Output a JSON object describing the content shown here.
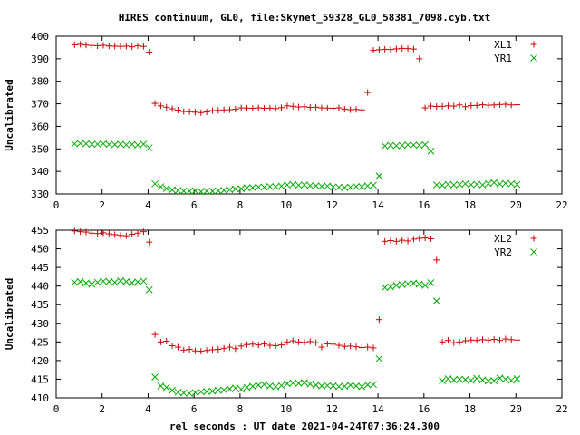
{
  "page": {
    "title": "HIRES continuum, GL0, file:Skynet_59328_GL0_58381_7098.cyb.txt",
    "xlabel": "rel seconds : UT date 2021-04-24T07:36:24.300"
  },
  "chart_data": [
    {
      "type": "scatter",
      "ylabel": "Uncalibrated",
      "xlim": [
        0,
        22
      ],
      "ylim": [
        330,
        400
      ],
      "xticks": [
        "0",
        "2",
        "4",
        "6",
        "8",
        "10",
        "12",
        "14",
        "16",
        "18",
        "20",
        "22"
      ],
      "yticks": [
        "330",
        "340",
        "350",
        "360",
        "370",
        "380",
        "390",
        "400"
      ],
      "legend_position": "top-right",
      "series": [
        {
          "name": "XL1",
          "marker": "+",
          "color": "#cc0000",
          "x": [
            0.8,
            1.05,
            1.3,
            1.55,
            1.8,
            2.05,
            2.3,
            2.55,
            2.8,
            3.05,
            3.3,
            3.55,
            3.8,
            4.05,
            4.3,
            4.55,
            4.8,
            5.05,
            5.3,
            5.55,
            5.8,
            6.05,
            6.3,
            6.55,
            6.8,
            7.05,
            7.3,
            7.55,
            7.8,
            8.05,
            8.3,
            8.55,
            8.8,
            9.05,
            9.3,
            9.55,
            9.8,
            10.05,
            10.3,
            10.55,
            10.8,
            11.05,
            11.3,
            11.55,
            11.8,
            12.05,
            12.3,
            12.55,
            12.8,
            13.05,
            13.3,
            13.55,
            13.8,
            14.05,
            14.3,
            14.55,
            14.8,
            15.05,
            15.3,
            15.55,
            15.8,
            16.05,
            16.3,
            16.55,
            16.8,
            17.05,
            17.3,
            17.55,
            17.8,
            18.05,
            18.3,
            18.55,
            18.8,
            19.05,
            19.3,
            19.55,
            19.8,
            20.05
          ],
          "y": [
            396.2,
            396.4,
            396.1,
            395.9,
            395.8,
            396.0,
            395.7,
            395.6,
            395.5,
            395.6,
            395.3,
            395.8,
            395.5,
            393.0,
            370.2,
            369.1,
            368.5,
            367.8,
            367.2,
            366.6,
            366.5,
            366.3,
            366.1,
            366.4,
            367.0,
            367.1,
            367.3,
            367.4,
            367.6,
            368.2,
            368.1,
            368.0,
            368.2,
            368.0,
            368.1,
            367.9,
            368.3,
            369.1,
            368.9,
            368.6,
            368.7,
            368.4,
            368.5,
            368.2,
            368.1,
            368.0,
            368.2,
            367.6,
            367.4,
            367.5,
            367.3,
            375.0,
            393.7,
            394.0,
            394.2,
            394.1,
            394.4,
            394.6,
            394.5,
            394.3,
            390.0,
            368.2,
            369.0,
            368.8,
            368.9,
            369.1,
            369.0,
            369.5,
            368.7,
            369.2,
            369.3,
            369.6,
            369.4,
            369.5,
            369.7,
            369.8,
            369.5,
            369.6
          ],
          "x_offset_note": ""
        },
        {
          "name": "YR1",
          "marker": "x",
          "color": "#00aa00",
          "x": [
            0.8,
            1.05,
            1.3,
            1.55,
            1.8,
            2.05,
            2.3,
            2.55,
            2.8,
            3.05,
            3.3,
            3.55,
            3.8,
            4.05,
            4.3,
            4.55,
            4.8,
            5.05,
            5.3,
            5.55,
            5.8,
            6.05,
            6.3,
            6.55,
            6.8,
            7.05,
            7.3,
            7.55,
            7.8,
            8.05,
            8.3,
            8.55,
            8.8,
            9.05,
            9.3,
            9.55,
            9.8,
            10.05,
            10.3,
            10.55,
            10.8,
            11.05,
            11.3,
            11.55,
            11.8,
            12.05,
            12.3,
            12.55,
            12.8,
            13.05,
            13.3,
            13.55,
            13.8,
            14.05,
            14.3,
            14.55,
            14.8,
            15.05,
            15.3,
            15.55,
            15.8,
            16.05,
            16.3,
            16.55,
            16.8,
            17.05,
            17.3,
            17.55,
            17.8,
            18.05,
            18.3,
            18.55,
            18.8,
            19.05,
            19.3,
            19.55,
            19.8,
            20.05
          ],
          "y": [
            352.2,
            352.4,
            352.3,
            352.0,
            352.1,
            352.3,
            352.0,
            351.9,
            352.1,
            351.8,
            352.0,
            351.7,
            352.1,
            350.5,
            334.5,
            333.2,
            332.4,
            331.8,
            331.5,
            331.3,
            331.2,
            331.4,
            331.0,
            331.3,
            331.2,
            331.4,
            331.6,
            331.9,
            332.2,
            332.3,
            332.7,
            332.8,
            333.1,
            333.0,
            333.3,
            333.2,
            333.5,
            334.0,
            334.2,
            333.9,
            334.0,
            333.7,
            333.6,
            333.4,
            333.5,
            333.1,
            333.0,
            332.8,
            333.0,
            333.3,
            333.2,
            333.6,
            333.9,
            338.0,
            351.3,
            351.6,
            351.4,
            351.5,
            351.8,
            351.7,
            351.6,
            351.9,
            349.0,
            334.0,
            333.8,
            334.3,
            334.0,
            334.2,
            334.5,
            334.1,
            334.3,
            334.0,
            334.6,
            335.0,
            334.4,
            334.7,
            334.5,
            334.2
          ]
        }
      ]
    },
    {
      "type": "scatter",
      "ylabel": "Uncalibrated",
      "xlim": [
        0,
        22
      ],
      "ylim": [
        410,
        455
      ],
      "xticks": [
        "0",
        "2",
        "4",
        "6",
        "8",
        "10",
        "12",
        "14",
        "16",
        "18",
        "20",
        "22"
      ],
      "yticks": [
        "410",
        "415",
        "420",
        "425",
        "430",
        "435",
        "440",
        "445",
        "450",
        "455"
      ],
      "legend_position": "top-right",
      "series": [
        {
          "name": "XL2",
          "marker": "+",
          "color": "#cc0000",
          "x": [
            0.8,
            1.05,
            1.3,
            1.55,
            1.8,
            2.05,
            2.3,
            2.55,
            2.8,
            3.05,
            3.3,
            3.55,
            3.8,
            4.05,
            4.3,
            4.55,
            4.8,
            5.05,
            5.3,
            5.55,
            5.8,
            6.05,
            6.3,
            6.55,
            6.8,
            7.05,
            7.3,
            7.55,
            7.8,
            8.05,
            8.3,
            8.55,
            8.8,
            9.05,
            9.3,
            9.55,
            9.8,
            10.05,
            10.3,
            10.55,
            10.8,
            11.05,
            11.3,
            11.55,
            11.8,
            12.05,
            12.3,
            12.55,
            12.8,
            13.05,
            13.3,
            13.55,
            13.8,
            14.05,
            14.3,
            14.55,
            14.8,
            15.05,
            15.3,
            15.55,
            15.8,
            16.05,
            16.3,
            16.55,
            16.8,
            17.05,
            17.3,
            17.55,
            17.8,
            18.05,
            18.3,
            18.55,
            18.8,
            19.05,
            19.3,
            19.55,
            19.8,
            20.05
          ],
          "y": [
            454.8,
            454.6,
            454.5,
            454.2,
            454.1,
            454.3,
            454.0,
            453.8,
            453.6,
            453.5,
            453.9,
            454.2,
            454.6,
            451.8,
            427.0,
            425.0,
            425.2,
            424.0,
            423.6,
            422.8,
            423.0,
            422.6,
            422.5,
            422.7,
            422.9,
            423.0,
            423.3,
            423.6,
            423.2,
            423.9,
            424.3,
            424.4,
            424.2,
            424.5,
            424.1,
            424.0,
            424.2,
            425.0,
            425.3,
            425.0,
            424.9,
            425.1,
            424.8,
            423.6,
            424.5,
            424.4,
            424.1,
            423.8,
            423.9,
            423.7,
            423.5,
            423.6,
            423.4,
            431.0,
            452.0,
            452.2,
            452.0,
            452.3,
            452.1,
            452.6,
            452.8,
            452.9,
            452.7,
            447.0,
            425.0,
            425.4,
            424.8,
            425.0,
            425.3,
            425.5,
            425.4,
            425.6,
            425.5,
            425.7,
            425.4,
            425.8,
            425.6,
            425.5
          ]
        },
        {
          "name": "YR2",
          "marker": "x",
          "color": "#00aa00",
          "x": [
            0.8,
            1.05,
            1.3,
            1.55,
            1.8,
            2.05,
            2.3,
            2.55,
            2.8,
            3.05,
            3.3,
            3.55,
            3.8,
            4.05,
            4.3,
            4.55,
            4.8,
            5.05,
            5.3,
            5.55,
            5.8,
            6.05,
            6.3,
            6.55,
            6.8,
            7.05,
            7.3,
            7.55,
            7.8,
            8.05,
            8.3,
            8.55,
            8.8,
            9.05,
            9.3,
            9.55,
            9.8,
            10.05,
            10.3,
            10.55,
            10.8,
            11.05,
            11.3,
            11.55,
            11.8,
            12.05,
            12.3,
            12.55,
            12.8,
            13.05,
            13.3,
            13.55,
            13.8,
            14.05,
            14.3,
            14.55,
            14.8,
            15.05,
            15.3,
            15.55,
            15.8,
            16.05,
            16.3,
            16.55,
            16.8,
            17.05,
            17.3,
            17.55,
            17.8,
            18.05,
            18.3,
            18.55,
            18.8,
            19.05,
            19.3,
            19.55,
            19.8,
            20.05
          ],
          "y": [
            441.0,
            441.2,
            440.8,
            440.5,
            441.0,
            441.3,
            441.2,
            441.0,
            441.4,
            441.2,
            440.9,
            441.1,
            441.3,
            439.0,
            415.6,
            413.2,
            412.8,
            412.0,
            411.5,
            411.3,
            411.2,
            411.4,
            411.6,
            411.7,
            411.8,
            412.0,
            412.1,
            412.4,
            412.6,
            412.3,
            412.8,
            413.1,
            413.4,
            413.6,
            413.2,
            413.0,
            413.3,
            413.8,
            414.0,
            413.9,
            414.1,
            413.7,
            413.4,
            413.2,
            413.3,
            413.2,
            413.0,
            413.1,
            413.4,
            413.2,
            413.0,
            413.5,
            413.6,
            420.5,
            439.6,
            439.8,
            440.2,
            440.4,
            440.6,
            440.8,
            440.5,
            440.2,
            440.9,
            436.0,
            414.6,
            415.1,
            414.8,
            415.0,
            414.9,
            414.7,
            415.2,
            414.8,
            414.5,
            414.6,
            415.3,
            415.0,
            414.7,
            415.1
          ]
        }
      ]
    }
  ]
}
